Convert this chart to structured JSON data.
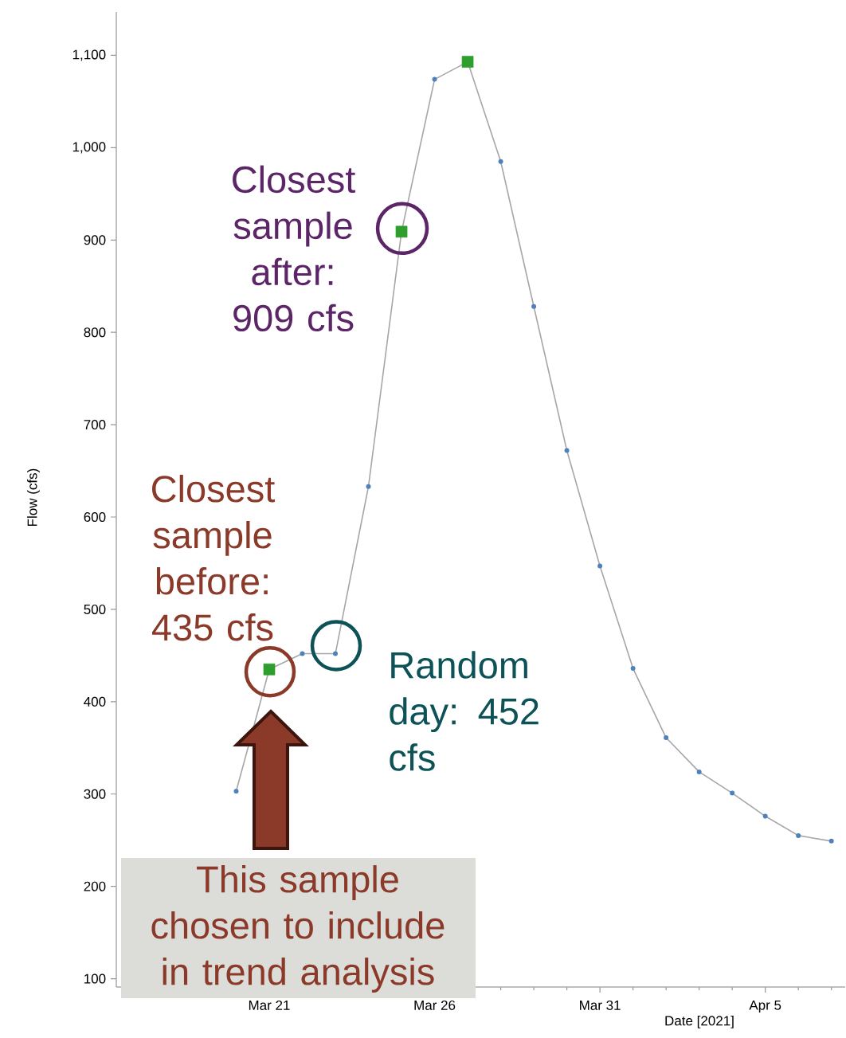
{
  "chart_data": {
    "type": "line",
    "xlabel": "Date [2021]",
    "ylabel": "Flow (cfs)",
    "xlim": [
      "2021-03-16T09:00",
      "2021-04-07T10:00"
    ],
    "ylim": [
      91,
      1147
    ],
    "xticks": [
      {
        "value": "2021-03-17",
        "label": null
      },
      {
        "value": "2021-03-18",
        "label": null
      },
      {
        "value": "2021-03-19",
        "label": null
      },
      {
        "value": "2021-03-20",
        "label": null
      },
      {
        "value": "2021-03-21",
        "label": "Mar 21"
      },
      {
        "value": "2021-03-22",
        "label": null
      },
      {
        "value": "2021-03-23",
        "label": null
      },
      {
        "value": "2021-03-24",
        "label": null
      },
      {
        "value": "2021-03-25",
        "label": null
      },
      {
        "value": "2021-03-26",
        "label": "Mar 26"
      },
      {
        "value": "2021-03-27",
        "label": null
      },
      {
        "value": "2021-03-28",
        "label": null
      },
      {
        "value": "2021-03-29",
        "label": null
      },
      {
        "value": "2021-03-30",
        "label": null
      },
      {
        "value": "2021-03-31",
        "label": "Mar 31"
      },
      {
        "value": "2021-04-01",
        "label": null
      },
      {
        "value": "2021-04-02",
        "label": null
      },
      {
        "value": "2021-04-03",
        "label": null
      },
      {
        "value": "2021-04-04",
        "label": null
      },
      {
        "value": "2021-04-05",
        "label": "Apr 5"
      },
      {
        "value": "2021-04-06",
        "label": null
      },
      {
        "value": "2021-04-07",
        "label": null
      }
    ],
    "yticks": [
      100,
      200,
      300,
      400,
      500,
      600,
      700,
      800,
      900,
      {
        "value": 1000,
        "label": "1,000"
      },
      {
        "value": 1100,
        "label": "1,100"
      }
    ],
    "series": [
      {
        "color": "#4f81bd",
        "marker": "circle",
        "x": [
          "2021-03-20",
          "2021-03-21",
          "2021-03-22",
          "2021-03-23",
          "2021-03-24",
          "2021-03-25",
          "2021-03-26",
          "2021-03-27",
          "2021-03-28",
          "2021-03-29",
          "2021-03-30",
          "2021-03-31",
          "2021-04-01",
          "2021-04-02",
          "2021-04-03",
          "2021-04-04",
          "2021-04-05",
          "2021-04-06",
          "2021-04-07"
        ],
        "values": [
          303,
          435,
          452,
          452,
          633,
          909,
          1074,
          1093,
          985,
          828,
          672,
          547,
          436,
          361,
          324,
          301,
          276,
          255,
          249
        ]
      },
      {
        "type": "scatter",
        "color": "#2e9e2e",
        "marker": "square",
        "x": [
          "2021-03-21",
          "2021-03-25",
          "2021-03-27"
        ],
        "values": [
          435,
          909,
          1093
        ]
      }
    ],
    "annotations": [
      {
        "text": "Closest sample after: 909 cfs",
        "x": "2021-03-25",
        "y": 909
      },
      {
        "text": "Closest sample before: 435 cfs",
        "x": "2021-03-21",
        "y": 435
      },
      {
        "text": "Random day: 452 cfs",
        "x": "2021-03-23",
        "y": 452
      },
      "This sample chosen to include in trend analysis"
    ]
  }
}
